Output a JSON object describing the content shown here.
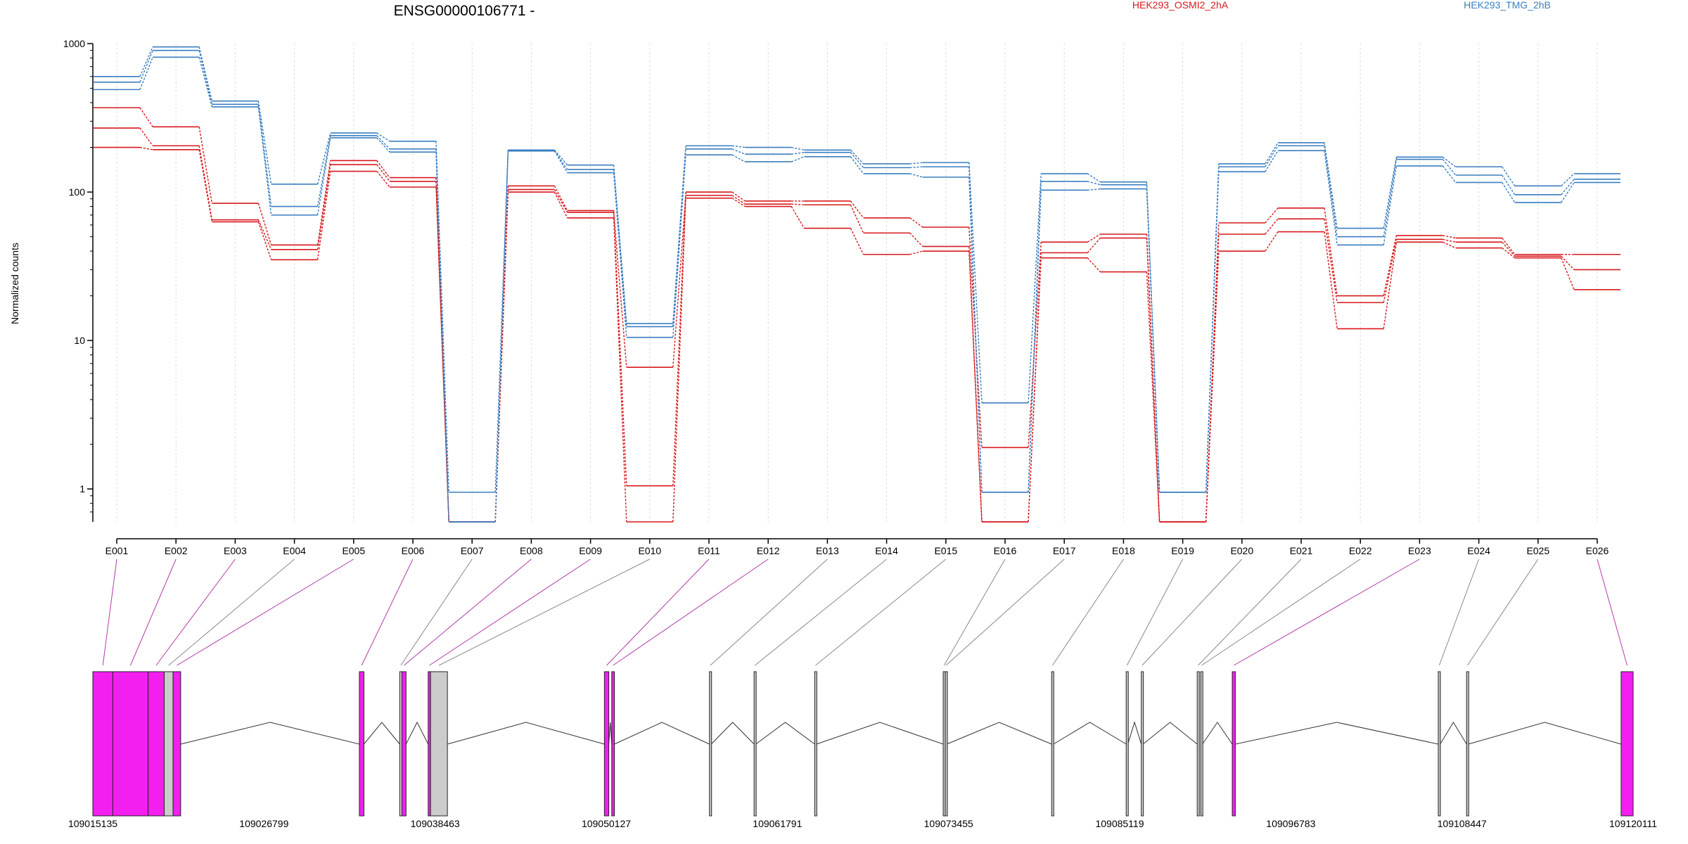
{
  "chart_data": {
    "type": "line",
    "title": "ENSG00000106771 -",
    "ylabel": "Normalized counts",
    "y_scale": "log",
    "ylim": [
      0.6,
      1000
    ],
    "y_ticks": [
      1,
      10,
      100,
      1000
    ],
    "y_tick_labels": [
      "1",
      "10",
      "100",
      "1000"
    ],
    "grid": "vertical dotted",
    "categories": [
      "E001",
      "E002",
      "E003",
      "E004",
      "E005",
      "E006",
      "E007",
      "E008",
      "E009",
      "E010",
      "E011",
      "E012",
      "E013",
      "E014",
      "E015",
      "E016",
      "E017",
      "E018",
      "E019",
      "E020",
      "E021",
      "E022",
      "E023",
      "E024",
      "E025",
      "E026"
    ],
    "legend": [
      {
        "name": "HEK293_OSMI2_2hA",
        "color": "#d7191c"
      },
      {
        "name": "HEK293_TMG_2hB",
        "color": "#3a7ec0"
      }
    ],
    "series": [
      {
        "group": "HEK293_OSMI2_2hA",
        "color": "#d7191c",
        "values": [
          370,
          275,
          84,
          44,
          163,
          125,
          0.6,
          110,
          75,
          1.05,
          100,
          87,
          87,
          67,
          58,
          1.9,
          46,
          52,
          0.6,
          62,
          78,
          20,
          51,
          49,
          38,
          38
        ]
      },
      {
        "group": "HEK293_OSMI2_2hA",
        "color": "#d7191c",
        "values": [
          270,
          205,
          65,
          41,
          153,
          118,
          0.6,
          104,
          73,
          6.6,
          95,
          83,
          82,
          53,
          43,
          0.6,
          39,
          49,
          0.6,
          52,
          66,
          18,
          48,
          46,
          37,
          30
        ]
      },
      {
        "group": "HEK293_OSMI2_2hA",
        "color": "#d7191c",
        "values": [
          200,
          193,
          63,
          35,
          138,
          108,
          0.6,
          100,
          67,
          0.6,
          91,
          80,
          57,
          38,
          40,
          0.6,
          36,
          29,
          0.6,
          40,
          54,
          12,
          46,
          42,
          36,
          22
        ]
      },
      {
        "group": "HEK293_TMG_2hB",
        "color": "#3a7ec0",
        "values": [
          600,
          950,
          410,
          113,
          250,
          220,
          0.95,
          192,
          152,
          13,
          205,
          200,
          192,
          155,
          158,
          3.8,
          133,
          117,
          0.95,
          155,
          215,
          57,
          172,
          148,
          110,
          133
        ]
      },
      {
        "group": "HEK293_TMG_2hB",
        "color": "#3a7ec0",
        "values": [
          550,
          900,
          390,
          80,
          240,
          195,
          0.6,
          190,
          142,
          12.4,
          195,
          180,
          185,
          146,
          148,
          0.95,
          118,
          112,
          0.95,
          148,
          205,
          50,
          166,
          130,
          96,
          122
        ]
      },
      {
        "group": "HEK293_TMG_2hB",
        "color": "#3a7ec0",
        "values": [
          490,
          810,
          375,
          70,
          232,
          186,
          0.6,
          189,
          135,
          10.5,
          178,
          160,
          173,
          133,
          126,
          0.95,
          103,
          105,
          0.95,
          137,
          190,
          44,
          150,
          116,
          85,
          116
        ]
      }
    ],
    "gene_model": {
      "coord_start": 109015135,
      "coord_end": 109120111,
      "coord_ticks": [
        109015135,
        109026799,
        109038463,
        109050127,
        109061791,
        109073455,
        109085119,
        109096783,
        109108447,
        109120111
      ],
      "coord_tick_labels": [
        "109015135",
        "109026799",
        "109038463",
        "109050127",
        "109061791",
        "109073455",
        "109085119",
        "109096783",
        "109108447",
        "109120111"
      ],
      "highlight_color": "#f21ff0",
      "plain_color": "#cccccc",
      "exons": [
        {
          "id": "E001",
          "start": 109015135,
          "end": 109016500,
          "highlight": true
        },
        {
          "id": "E002",
          "start": 109016500,
          "end": 109018900,
          "highlight": true
        },
        {
          "id": "E003",
          "start": 109018900,
          "end": 109020000,
          "highlight": true
        },
        {
          "id": "E004",
          "start": 109020000,
          "end": 109020600,
          "highlight": false
        },
        {
          "id": "E005",
          "start": 109020600,
          "end": 109021120,
          "highlight": true
        },
        {
          "id": "E006",
          "start": 109033300,
          "end": 109033610,
          "highlight": true
        },
        {
          "id": "E007",
          "start": 109036050,
          "end": 109036200,
          "highlight": false
        },
        {
          "id": "E008",
          "start": 109036200,
          "end": 109036480,
          "highlight": true
        },
        {
          "id": "E009",
          "start": 109037990,
          "end": 109038150,
          "highlight": true
        },
        {
          "id": "E010",
          "start": 109038150,
          "end": 109039300,
          "highlight": false
        },
        {
          "id": "E011",
          "start": 109050000,
          "end": 109050300,
          "highlight": true
        },
        {
          "id": "E012",
          "start": 109050500,
          "end": 109050680,
          "highlight": true
        },
        {
          "id": "E013",
          "start": 109057160,
          "end": 109057280,
          "highlight": false
        },
        {
          "id": "E014",
          "start": 109060200,
          "end": 109060320,
          "highlight": false
        },
        {
          "id": "E015",
          "start": 109064330,
          "end": 109064450,
          "highlight": false
        },
        {
          "id": "E016",
          "start": 109073090,
          "end": 109073210,
          "highlight": false
        },
        {
          "id": "E017",
          "start": 109073230,
          "end": 109073330,
          "highlight": false
        },
        {
          "id": "E018",
          "start": 109080480,
          "end": 109080600,
          "highlight": false
        },
        {
          "id": "E019",
          "start": 109085560,
          "end": 109085670,
          "highlight": false
        },
        {
          "id": "E020",
          "start": 109086590,
          "end": 109086710,
          "highlight": false
        },
        {
          "id": "E021",
          "start": 109090400,
          "end": 109090530,
          "highlight": false
        },
        {
          "id": "E022",
          "start": 109090640,
          "end": 109090760,
          "highlight": false
        },
        {
          "id": "E023",
          "start": 109092790,
          "end": 109093000,
          "highlight": true
        },
        {
          "id": "E024",
          "start": 109106830,
          "end": 109106960,
          "highlight": false
        },
        {
          "id": "E025",
          "start": 109108760,
          "end": 109108880,
          "highlight": false
        },
        {
          "id": "E026",
          "start": 109119290,
          "end": 109120111,
          "highlight": true
        }
      ]
    }
  }
}
